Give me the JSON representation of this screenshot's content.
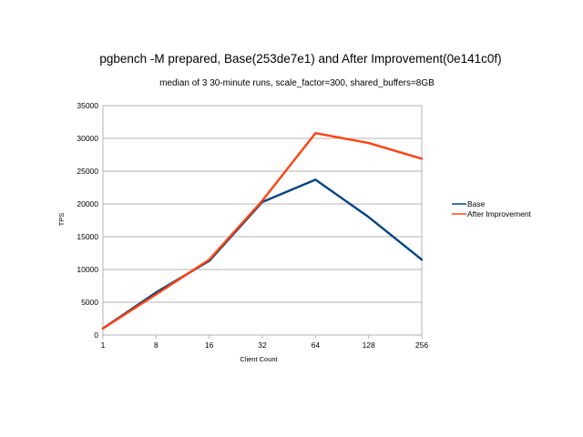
{
  "chart_data": {
    "type": "line",
    "title": "pgbench -M prepared, Base(253de7e1) and After Improvement(0e141c0f)",
    "subtitle": "median of 3 30-minute runs, scale_factor=300, shared_buffers=8GB",
    "xlabel": "Client Count",
    "ylabel": "TPS",
    "categories": [
      "1",
      "8",
      "16",
      "32",
      "64",
      "128",
      "256"
    ],
    "ylim": [
      0,
      35000
    ],
    "yticks": [
      "0",
      "5000",
      "10000",
      "15000",
      "20000",
      "25000",
      "30000",
      "35000"
    ],
    "grid": true,
    "legend_position": "right",
    "series": [
      {
        "name": "Base",
        "color": "#004586",
        "values": [
          1000,
          6500,
          11300,
          20300,
          23700,
          18000,
          11500
        ]
      },
      {
        "name": "After Improvement",
        "color": "#ff420e",
        "values": [
          1000,
          6200,
          11500,
          20500,
          30800,
          29300,
          26900
        ]
      }
    ]
  }
}
